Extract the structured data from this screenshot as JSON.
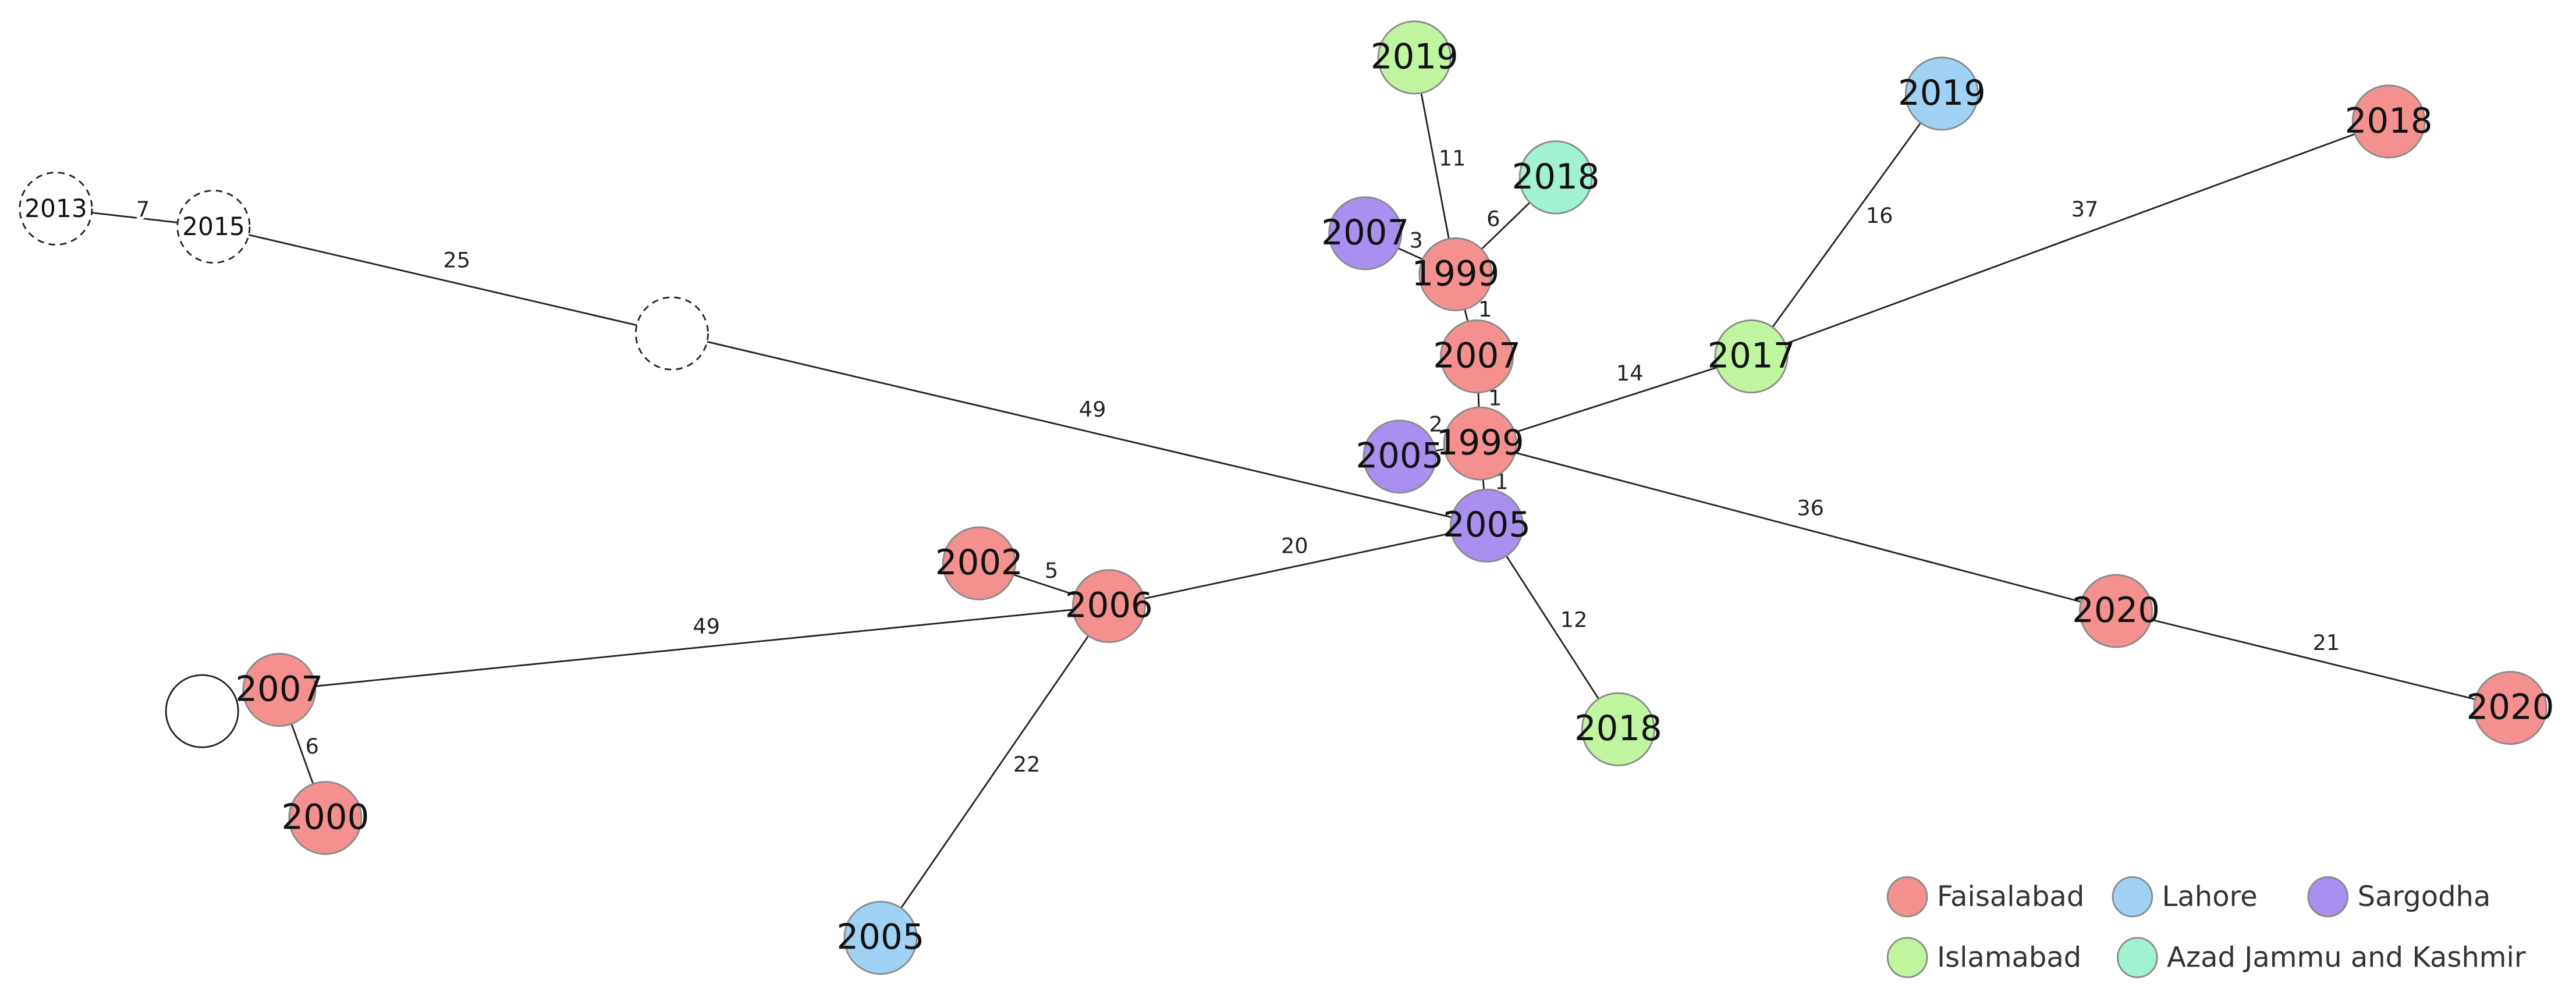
{
  "nodes": [
    {
      "label": "2013",
      "dashed": true
    },
    {
      "label": "2015",
      "dashed": true
    },
    {
      "dashed": true
    },
    {
      "label": "2019",
      "group": 3
    },
    {
      "label": "2018",
      "group": 4
    },
    {
      "label": "2007",
      "group": 2
    },
    {
      "label": "1999",
      "group": 0
    },
    {
      "label": "2007",
      "group": 0
    },
    {
      "label": "1999",
      "group": 0
    },
    {
      "label": "2005",
      "group": 2
    },
    {
      "label": "2005",
      "group": 2
    },
    {
      "label": "2019",
      "group": 1
    },
    {
      "label": "2018",
      "group": 0
    },
    {
      "label": "2017",
      "group": 3
    },
    {
      "label": "2020",
      "group": 0
    },
    {
      "label": "2020",
      "group": 0
    },
    {
      "label": "2018",
      "group": 3
    },
    {
      "label": "2002",
      "group": 0
    },
    {
      "label": "2006",
      "group": 0
    },
    {
      "label": "2007",
      "group": 0
    },
    {},
    {
      "label": "2000",
      "group": 0
    },
    {
      "label": "2005",
      "group": 1
    }
  ],
  "edges": [
    {
      "from": 0,
      "to": 1,
      "label": 7
    },
    {
      "from": 1,
      "to": 2,
      "label": 25
    },
    {
      "from": 2,
      "to": 10,
      "label": 49
    },
    {
      "from": 3,
      "to": 6,
      "label": 11
    },
    {
      "from": 4,
      "to": 6,
      "label": 6
    },
    {
      "from": 5,
      "to": 6,
      "label": 3
    },
    {
      "from": 6,
      "to": 7,
      "label": 1
    },
    {
      "from": 7,
      "to": 8,
      "label": 1
    },
    {
      "from": 8,
      "to": 9,
      "label": 2
    },
    {
      "from": 8,
      "to": 10,
      "label": 1
    },
    {
      "from": 8,
      "to": 13,
      "label": 14
    },
    {
      "from": 13,
      "to": 11,
      "label": 16
    },
    {
      "from": 13,
      "to": 12,
      "label": 37
    },
    {
      "from": 8,
      "to": 14,
      "label": 36
    },
    {
      "from": 14,
      "to": 15,
      "label": 21
    },
    {
      "from": 10,
      "to": 16,
      "label": 12
    },
    {
      "from": 10,
      "to": 18,
      "label": 20
    },
    {
      "from": 17,
      "to": 18,
      "label": 5
    },
    {
      "from": 18,
      "to": 19,
      "label": 49
    },
    {
      "from": 18,
      "to": 22,
      "label": 22
    },
    {
      "from": 19,
      "to": 21,
      "label": 6
    }
  ],
  "legend": [
    {
      "name": "Faisalabad",
      "color": "#f4918f"
    },
    {
      "name": "Lahore",
      "color": "#9fd2f5"
    },
    {
      "name": "Sargodha",
      "color": "#a98ff0"
    },
    {
      "name": "Islamabad",
      "color": "#c0f5a0"
    },
    {
      "name": "Azad Jammu and Kashmir",
      "color": "#a0f2d0"
    }
  ]
}
